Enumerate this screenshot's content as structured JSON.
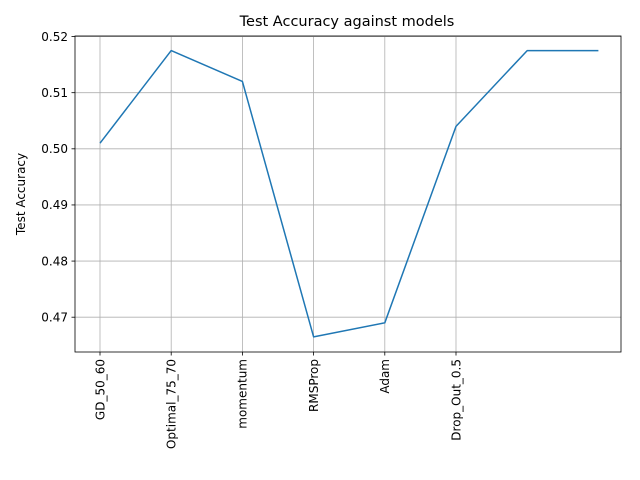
{
  "chart_data": {
    "type": "line",
    "title": "Test Accuracy against models",
    "xlabel": "",
    "ylabel": "Test Accuracy",
    "categories": [
      "GD_50_60",
      "Optimal_75_70",
      "momentum",
      "RMSProp",
      "Adam",
      "Drop_Out_0.5",
      "",
      ""
    ],
    "series": [
      {
        "values": [
          0.501,
          0.5175,
          0.512,
          0.4665,
          0.469,
          0.504,
          0.5175,
          0.5175
        ],
        "color": "#1f77b4"
      }
    ],
    "y_ticks": [
      0.47,
      0.48,
      0.49,
      0.5,
      0.51,
      0.52
    ],
    "y_tick_labels": [
      "0.47",
      "0.48",
      "0.49",
      "0.50",
      "0.51",
      "0.52"
    ],
    "x_tick_labels": [
      "GD_50_60",
      "Optimal_75_70",
      "momentum",
      "RMSProp",
      "Adam",
      "Drop_Out_0.5"
    ],
    "ylim": [
      0.4638,
      0.5201
    ],
    "grid": true,
    "legend": "none",
    "colors": {
      "line": "#1f77b4",
      "grid": "#b0b0b0",
      "axes": "#000000"
    }
  }
}
